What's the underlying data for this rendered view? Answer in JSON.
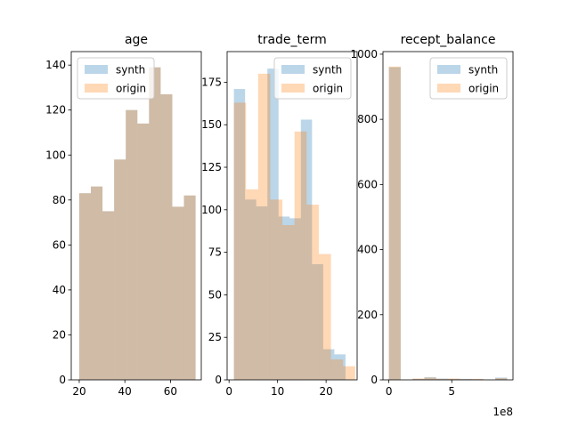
{
  "colors": {
    "synth": "#1f77b4",
    "origin": "#ff7f0e",
    "synth_alpha": 0.3,
    "origin_alpha": 0.3
  },
  "chart_data": [
    {
      "type": "histogram",
      "title": "age",
      "xlim": [
        16.5,
        73.5
      ],
      "ylim": [
        0,
        146
      ],
      "xticks": [
        20,
        40,
        60
      ],
      "yticks": [
        0,
        20,
        40,
        60,
        80,
        100,
        120,
        140
      ],
      "legend": {
        "placement": "top-left",
        "entries": [
          "synth",
          "origin"
        ]
      },
      "series": [
        {
          "name": "synth",
          "bins": [
            [
              20,
              25.1
            ],
            [
              25.1,
              30.2
            ],
            [
              30.2,
              35.3
            ],
            [
              35.3,
              40.4
            ],
            [
              40.4,
              45.5
            ],
            [
              45.5,
              50.6
            ],
            [
              50.6,
              55.7
            ],
            [
              55.7,
              60.8
            ],
            [
              60.8,
              65.9
            ],
            [
              65.9,
              71
            ]
          ],
          "counts": [
            83,
            86,
            75,
            98,
            120,
            114,
            139,
            127,
            77,
            82
          ]
        },
        {
          "name": "origin",
          "bins": [
            [
              20,
              25.1
            ],
            [
              25.1,
              30.2
            ],
            [
              30.2,
              35.3
            ],
            [
              35.3,
              40.4
            ],
            [
              40.4,
              45.5
            ],
            [
              45.5,
              50.6
            ],
            [
              50.6,
              55.7
            ],
            [
              55.7,
              60.8
            ],
            [
              60.8,
              65.9
            ],
            [
              65.9,
              71
            ]
          ],
          "counts": [
            83,
            86,
            75,
            98,
            120,
            114,
            139,
            127,
            77,
            82
          ]
        }
      ]
    },
    {
      "type": "histogram",
      "title": "trade_term",
      "xlim": [
        -0.4,
        26.4
      ],
      "ylim": [
        0,
        193
      ],
      "xticks": [
        0,
        10,
        20
      ],
      "yticks": [
        0,
        25,
        50,
        75,
        100,
        125,
        150,
        175
      ],
      "legend": {
        "placement": "top-right",
        "entries": [
          "synth",
          "origin"
        ]
      },
      "series": [
        {
          "name": "synth",
          "bins": [
            [
              1,
              3.3
            ],
            [
              3.3,
              5.6
            ],
            [
              5.6,
              7.9
            ],
            [
              7.9,
              10.2
            ],
            [
              10.2,
              12.5
            ],
            [
              12.5,
              14.8
            ],
            [
              14.8,
              17.1
            ],
            [
              17.1,
              19.4
            ],
            [
              19.4,
              21.7
            ],
            [
              21.7,
              24
            ]
          ],
          "counts": [
            171,
            106,
            102,
            183,
            96,
            95,
            153,
            68,
            18,
            15
          ]
        },
        {
          "name": "origin",
          "bins": [
            [
              1,
              3.5
            ],
            [
              3.5,
              6
            ],
            [
              6,
              8.5
            ],
            [
              8.5,
              11
            ],
            [
              11,
              13.5
            ],
            [
              13.5,
              16
            ],
            [
              16,
              18.5
            ],
            [
              18.5,
              21
            ],
            [
              21,
              23.5
            ],
            [
              23.5,
              26
            ]
          ],
          "counts": [
            163,
            112,
            180,
            106,
            91,
            146,
            103,
            74,
            12,
            8
          ]
        }
      ]
    },
    {
      "type": "histogram",
      "title": "recept_balance",
      "xlim": [
        -0.47,
        9.87
      ],
      "ylim": [
        0,
        1008
      ],
      "xticks": [
        0,
        5
      ],
      "yticks": [
        0,
        200,
        400,
        600,
        800,
        1000
      ],
      "x_offset_label": "1e8",
      "legend": {
        "placement": "top-right",
        "entries": [
          "synth",
          "origin"
        ]
      },
      "series": [
        {
          "name": "synth",
          "bins": [
            [
              0,
              0.94
            ],
            [
              0.94,
              1.88
            ],
            [
              1.88,
              2.82
            ],
            [
              2.82,
              3.76
            ],
            [
              3.76,
              4.7
            ],
            [
              4.7,
              5.64
            ],
            [
              5.64,
              6.58
            ],
            [
              6.58,
              7.52
            ],
            [
              7.52,
              8.46
            ],
            [
              8.46,
              9.4
            ]
          ],
          "counts": [
            960,
            0,
            3,
            8,
            4,
            3,
            3,
            2,
            0,
            7
          ]
        },
        {
          "name": "origin",
          "bins": [
            [
              0,
              0.94
            ],
            [
              0.94,
              1.88
            ],
            [
              1.88,
              2.82
            ],
            [
              2.82,
              3.76
            ],
            [
              3.76,
              4.7
            ],
            [
              4.7,
              5.64
            ],
            [
              5.64,
              6.58
            ],
            [
              6.58,
              7.52
            ],
            [
              7.52,
              8.46
            ],
            [
              8.46,
              9.4
            ]
          ],
          "counts": [
            962,
            0,
            4,
            7,
            3,
            4,
            2,
            3,
            0,
            5
          ]
        }
      ]
    }
  ]
}
